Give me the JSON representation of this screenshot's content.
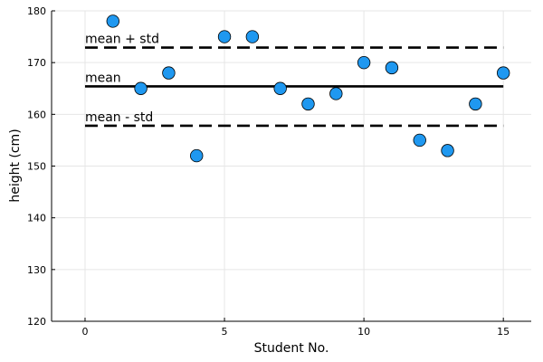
{
  "chart_data": {
    "type": "scatter",
    "title": "",
    "xlabel": "Student No.",
    "ylabel": "height (cm)",
    "xlim": [
      -1.2,
      16.0
    ],
    "ylim": [
      120,
      180
    ],
    "x_ticks": [
      0,
      5,
      10,
      15
    ],
    "y_ticks": [
      120,
      130,
      140,
      150,
      160,
      170,
      180
    ],
    "grid": true,
    "legend": "none",
    "series": [
      {
        "x": [
          1,
          2,
          3,
          4,
          5,
          6,
          7,
          8,
          9,
          10,
          11,
          12,
          13,
          14,
          15
        ],
        "values": [
          178,
          165,
          168,
          152,
          175,
          175,
          165,
          162,
          164,
          170,
          169,
          155,
          153,
          162,
          168
        ],
        "color": "#1f98f0"
      }
    ],
    "reference_lines": [
      {
        "label": "mean + std",
        "y": 172.9,
        "style": "dashed"
      },
      {
        "label": "mean",
        "y": 165.4,
        "style": "solid"
      },
      {
        "label": "mean - std",
        "y": 157.8,
        "style": "dashed"
      }
    ]
  }
}
